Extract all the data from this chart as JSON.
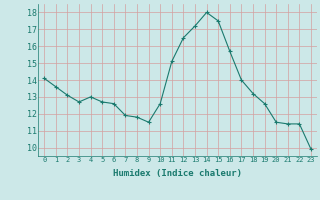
{
  "x": [
    0,
    1,
    2,
    3,
    4,
    5,
    6,
    7,
    8,
    9,
    10,
    11,
    12,
    13,
    14,
    15,
    16,
    17,
    18,
    19,
    20,
    21,
    22,
    23
  ],
  "y": [
    14.1,
    13.6,
    13.1,
    12.7,
    13.0,
    12.7,
    12.6,
    11.9,
    11.8,
    11.5,
    12.6,
    15.1,
    16.5,
    17.2,
    18.0,
    17.5,
    15.7,
    14.0,
    13.2,
    12.6,
    11.5,
    11.4,
    11.4,
    9.9
  ],
  "line_color": "#1a7a6e",
  "marker": "+",
  "marker_size": 3,
  "bg_color": "#cce8e8",
  "grid_color": "#d4a0a0",
  "xlabel": "Humidex (Indice chaleur)",
  "xlim": [
    -0.5,
    23.5
  ],
  "ylim": [
    9.5,
    18.5
  ],
  "yticks": [
    10,
    11,
    12,
    13,
    14,
    15,
    16,
    17,
    18
  ],
  "xticks": [
    0,
    1,
    2,
    3,
    4,
    5,
    6,
    7,
    8,
    9,
    10,
    11,
    12,
    13,
    14,
    15,
    16,
    17,
    18,
    19,
    20,
    21,
    22,
    23
  ]
}
